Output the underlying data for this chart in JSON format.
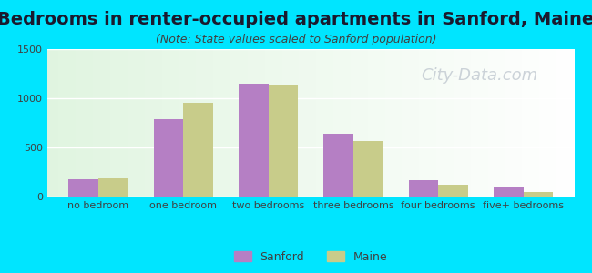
{
  "title": "Bedrooms in renter-occupied apartments in Sanford, Maine",
  "subtitle": "(Note: State values scaled to Sanford population)",
  "categories": [
    "no bedroom",
    "one bedroom",
    "two bedrooms",
    "three bedrooms",
    "four bedrooms",
    "five+ bedrooms"
  ],
  "sanford_values": [
    175,
    790,
    1150,
    640,
    165,
    100
  ],
  "maine_values": [
    185,
    950,
    1140,
    565,
    120,
    45
  ],
  "sanford_color": "#b57fc4",
  "maine_color": "#c8cc8a",
  "ylim": [
    0,
    1500
  ],
  "yticks": [
    0,
    500,
    1000,
    1500
  ],
  "bar_width": 0.35,
  "background_outer": "#00e5ff",
  "title_fontsize": 14,
  "subtitle_fontsize": 9,
  "tick_label_fontsize": 8,
  "legend_fontsize": 9,
  "watermark_text": "City-Data.com",
  "watermark_color": "#c0c8d0",
  "watermark_fontsize": 13
}
